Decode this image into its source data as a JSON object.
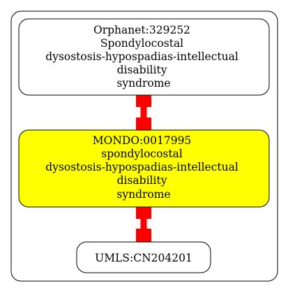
{
  "colors": {
    "background": "#ffffff",
    "cluster_border": "#000000",
    "node_border": "#000000",
    "node_fill_default": "#ffffff",
    "node_fill_highlight": "#ffff00",
    "edge": "#ff0000"
  },
  "nodes": [
    {
      "id": "orphanet",
      "lines": [
        "Orphanet:329252",
        "Spondylocostal",
        "dysostosis-hypospadias-intellectual",
        "disability",
        "syndrome"
      ],
      "highlighted": false
    },
    {
      "id": "mondo",
      "lines": [
        "MONDO:0017995",
        "spondylocostal",
        "dysostosis-hypospadias-intellectual",
        "disability",
        "syndrome"
      ],
      "highlighted": true
    },
    {
      "id": "umls",
      "lines": [
        "UMLS:CN204201"
      ],
      "highlighted": false
    }
  ],
  "edges": [
    {
      "from": "orphanet",
      "to": "mondo",
      "direction": "both"
    },
    {
      "from": "mondo",
      "to": "umls",
      "direction": "both"
    }
  ]
}
